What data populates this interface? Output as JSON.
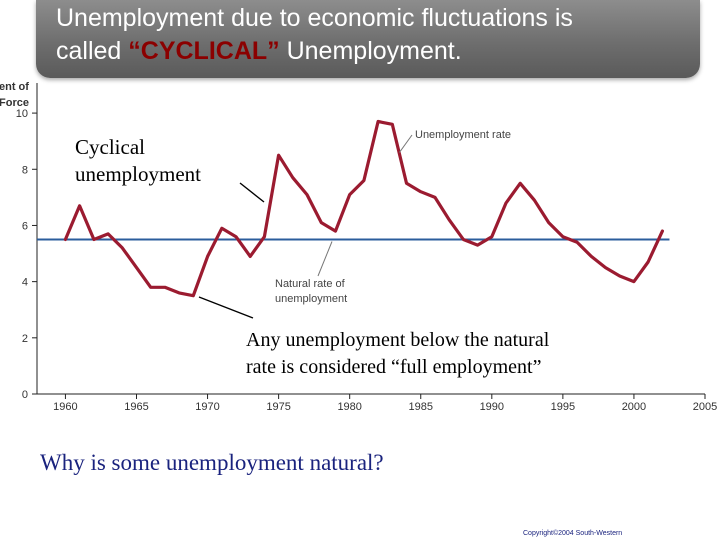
{
  "slide": {
    "title_line1": "Unemployment due to economic fluctuations is",
    "title_line2_prefix": "called ",
    "title_line2_highlight": "“CYCLICAL”",
    "title_line2_suffix": " Unemployment.",
    "cyclical_label_line1": "Cyclical",
    "cyclical_label_line2": "unemployment",
    "full_employment_line1": "Any unemployment below the natural",
    "full_employment_line2": "rate is considered “full employment”",
    "question": "Why is some unemployment natural?",
    "copyright": "Copyright©2004 South-Western",
    "colors": {
      "series": "#9b1b30",
      "natural_rate": "#2b5d9c",
      "banner": "#7a7a7a",
      "highlight": "#8b0000",
      "question": "#1a237e"
    }
  },
  "chart_data": {
    "type": "line",
    "ylabel": "ent of\nForce",
    "ylabel_lines": [
      "ent of",
      "Force"
    ],
    "xlim": [
      1958,
      2005
    ],
    "ylim": [
      0,
      11
    ],
    "x_ticks": [
      1960,
      1965,
      1970,
      1975,
      1980,
      1985,
      1990,
      1995,
      2000,
      2005
    ],
    "y_ticks": [
      0,
      2,
      4,
      6,
      8,
      10
    ],
    "series": [
      {
        "name": "Unemployment rate",
        "x": [
          1960,
          1961,
          1962,
          1963,
          1964,
          1965,
          1966,
          1967,
          1968,
          1969,
          1970,
          1971,
          1972,
          1973,
          1974,
          1975,
          1976,
          1977,
          1978,
          1979,
          1980,
          1981,
          1982,
          1983,
          1984,
          1985,
          1986,
          1987,
          1988,
          1989,
          1990,
          1991,
          1992,
          1993,
          1994,
          1995,
          1996,
          1997,
          1998,
          1999,
          2000,
          2001,
          2002
        ],
        "y": [
          5.5,
          6.7,
          5.5,
          5.7,
          5.2,
          4.5,
          3.8,
          3.8,
          3.6,
          3.5,
          4.9,
          5.9,
          5.6,
          4.9,
          5.6,
          8.5,
          7.7,
          7.1,
          6.1,
          5.8,
          7.1,
          7.6,
          9.7,
          9.6,
          7.5,
          7.2,
          7.0,
          6.2,
          5.5,
          5.3,
          5.6,
          6.8,
          7.5,
          6.9,
          6.1,
          5.6,
          5.4,
          4.9,
          4.5,
          4.2,
          4.0,
          4.7,
          5.8
        ]
      },
      {
        "name": "Natural rate of unemployment",
        "x": [
          1958,
          2002.5
        ],
        "y": [
          5.5,
          5.5
        ]
      }
    ],
    "annotations": [
      "Unemployment rate",
      "Natural rate of",
      "unemployment"
    ],
    "grid": false
  }
}
